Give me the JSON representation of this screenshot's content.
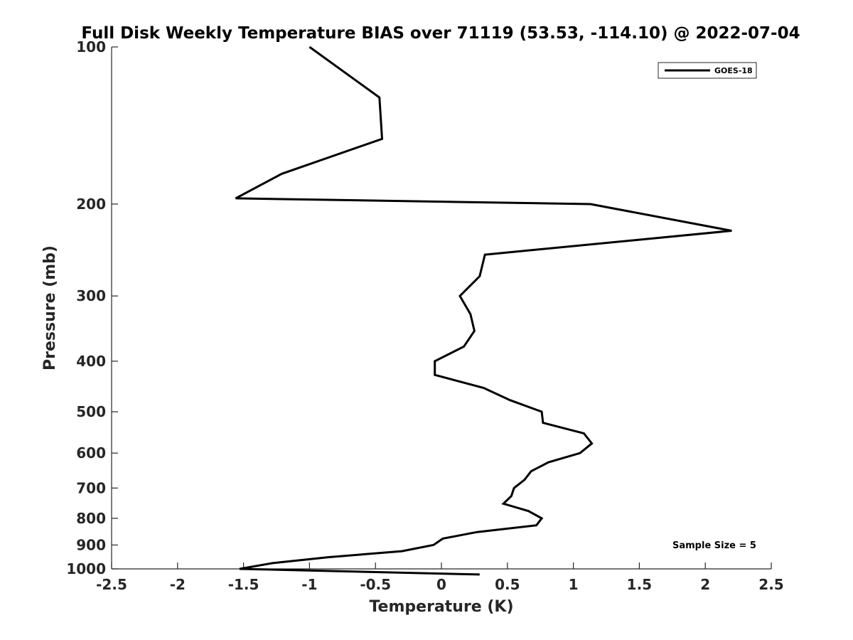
{
  "chart_data": {
    "type": "line",
    "title": "Full Disk Weekly Temperature BIAS over 71119 (53.53, -114.10) @ 2022-07-04",
    "xlabel": "Temperature (K)",
    "ylabel": "Pressure (mb)",
    "xlim": [
      -2.5,
      2.5
    ],
    "ylim": [
      100,
      1000
    ],
    "y_scale": "log",
    "y_reversed": true,
    "grid": false,
    "legend_position": "top-right",
    "x_ticks": [
      -2.5,
      -2,
      -1.5,
      -1,
      -0.5,
      0,
      0.5,
      1,
      1.5,
      2,
      2.5
    ],
    "x_tick_labels": [
      "-2.5",
      "-2",
      "-1.5",
      "-1",
      "-0.5",
      "0",
      "0.5",
      "1",
      "1.5",
      "2",
      "2.5"
    ],
    "y_ticks": [
      100,
      200,
      300,
      400,
      500,
      600,
      700,
      800,
      900,
      1000
    ],
    "y_tick_labels": [
      "100",
      "200",
      "300",
      "400",
      "500",
      "600",
      "700",
      "800",
      "900",
      "1000"
    ],
    "annotation": "Sample Size = 5",
    "series": [
      {
        "name": "GOES-18",
        "color": "#000000",
        "points": [
          {
            "t": -1.0,
            "p": 100
          },
          {
            "t": -0.47,
            "p": 125
          },
          {
            "t": -0.45,
            "p": 150
          },
          {
            "t": -1.21,
            "p": 175
          },
          {
            "t": -1.56,
            "p": 195
          },
          {
            "t": 1.13,
            "p": 200
          },
          {
            "t": 2.2,
            "p": 225
          },
          {
            "t": 0.33,
            "p": 250
          },
          {
            "t": 0.29,
            "p": 275
          },
          {
            "t": 0.14,
            "p": 300
          },
          {
            "t": 0.22,
            "p": 325
          },
          {
            "t": 0.25,
            "p": 350
          },
          {
            "t": 0.17,
            "p": 375
          },
          {
            "t": -0.05,
            "p": 400
          },
          {
            "t": -0.05,
            "p": 425
          },
          {
            "t": 0.32,
            "p": 450
          },
          {
            "t": 0.52,
            "p": 475
          },
          {
            "t": 0.76,
            "p": 500
          },
          {
            "t": 0.77,
            "p": 525
          },
          {
            "t": 1.08,
            "p": 550
          },
          {
            "t": 1.14,
            "p": 575
          },
          {
            "t": 1.05,
            "p": 600
          },
          {
            "t": 0.81,
            "p": 625
          },
          {
            "t": 0.68,
            "p": 650
          },
          {
            "t": 0.63,
            "p": 675
          },
          {
            "t": 0.55,
            "p": 700
          },
          {
            "t": 0.53,
            "p": 725
          },
          {
            "t": 0.47,
            "p": 750
          },
          {
            "t": 0.66,
            "p": 775
          },
          {
            "t": 0.76,
            "p": 800
          },
          {
            "t": 0.72,
            "p": 825
          },
          {
            "t": 0.27,
            "p": 850
          },
          {
            "t": 0.01,
            "p": 875
          },
          {
            "t": -0.06,
            "p": 900
          },
          {
            "t": -0.3,
            "p": 925
          },
          {
            "t": -0.86,
            "p": 950
          },
          {
            "t": -1.28,
            "p": 975
          },
          {
            "t": -1.53,
            "p": 1000
          },
          {
            "t": 0.29,
            "p": 1025
          }
        ]
      }
    ]
  }
}
